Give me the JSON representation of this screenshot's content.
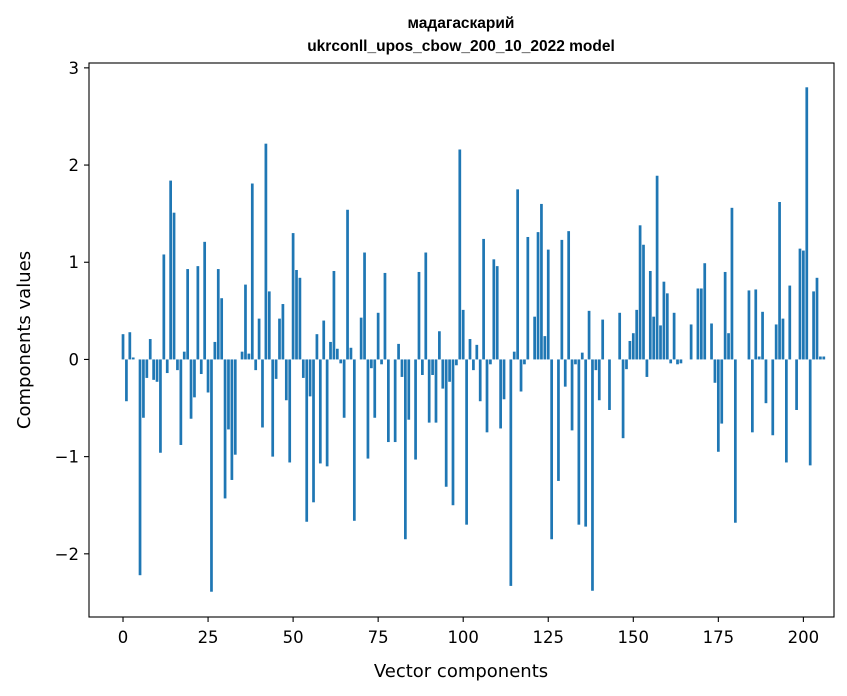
{
  "chart_data": {
    "type": "bar",
    "title": "мадагаскарий",
    "subtitle": "ukrconll_upos_cbow_200_10_2022 model",
    "xlabel": "Vector components",
    "ylabel": "Components values",
    "xlim": [
      -10,
      209
    ],
    "ylim": [
      -2.65,
      3.05
    ],
    "xticks": [
      0,
      25,
      50,
      75,
      100,
      125,
      150,
      175,
      200
    ],
    "yticks": [
      -2,
      -1,
      0,
      1,
      2,
      3
    ],
    "xtick_labels": [
      "0",
      "25",
      "50",
      "75",
      "100",
      "125",
      "150",
      "175",
      "200"
    ],
    "ytick_labels": [
      "−2",
      "−1",
      "0",
      "1",
      "2",
      "3"
    ],
    "grid": false,
    "bar_color": "#1f77b4",
    "values": [
      0.26,
      -0.43,
      0.28,
      0.02,
      0.0,
      -2.22,
      -0.6,
      -0.19,
      0.21,
      -0.21,
      -0.23,
      -0.96,
      1.08,
      -0.14,
      1.84,
      1.51,
      -0.11,
      -0.88,
      0.08,
      0.93,
      -0.61,
      -0.39,
      0.96,
      -0.15,
      1.21,
      -0.34,
      -2.39,
      0.18,
      0.93,
      0.63,
      -1.43,
      -0.72,
      -1.24,
      -0.98,
      0.0,
      0.08,
      0.77,
      0.06,
      1.81,
      -0.11,
      0.42,
      -0.7,
      2.22,
      0.7,
      -1.0,
      -0.2,
      0.42,
      0.57,
      -0.42,
      -1.06,
      1.3,
      0.92,
      0.84,
      -0.19,
      -1.67,
      -0.38,
      -1.47,
      0.26,
      -1.07,
      0.4,
      -1.1,
      0.18,
      0.91,
      0.11,
      -0.04,
      -0.6,
      1.54,
      0.12,
      -1.66,
      0.0,
      0.43,
      1.1,
      -1.02,
      -0.09,
      -0.6,
      0.48,
      -0.05,
      0.89,
      -0.85,
      0.0,
      -0.85,
      0.16,
      -0.18,
      -1.85,
      -0.62,
      0.0,
      -1.03,
      0.9,
      -0.16,
      1.1,
      -0.65,
      -0.16,
      -0.65,
      0.29,
      -0.3,
      -1.31,
      -0.23,
      -1.5,
      -0.06,
      2.16,
      0.51,
      -1.7,
      0.21,
      -0.11,
      0.15,
      -0.43,
      1.24,
      -0.75,
      -0.05,
      1.03,
      0.96,
      -0.71,
      -0.41,
      0.0,
      -2.33,
      0.08,
      1.75,
      -0.33,
      -0.05,
      1.26,
      0.0,
      0.44,
      1.31,
      1.6,
      0.24,
      1.13,
      -1.85,
      0.0,
      -1.25,
      1.23,
      -0.28,
      1.32,
      -0.73,
      -0.05,
      -1.7,
      0.07,
      -1.72,
      0.5,
      -2.38,
      -0.11,
      -0.42,
      0.41,
      0.0,
      -0.52,
      0.0,
      0.0,
      0.48,
      -0.81,
      -0.1,
      0.19,
      0.27,
      0.51,
      1.38,
      1.18,
      -0.18,
      0.91,
      0.44,
      1.89,
      0.35,
      0.8,
      0.68,
      -0.04,
      0.48,
      -0.05,
      -0.04,
      0.0,
      0.0,
      0.36,
      0.0,
      0.73,
      0.73,
      0.99,
      0.0,
      0.37,
      -0.24,
      -0.95,
      -0.66,
      0.9,
      0.27,
      1.56,
      -1.68,
      0.0,
      0.0,
      0.0,
      0.71,
      -0.75,
      0.72,
      0.03,
      0.49,
      -0.45,
      0.0,
      -0.78,
      0.36,
      1.62,
      0.42,
      -1.06,
      0.76,
      0.0,
      -0.52,
      1.14,
      1.12,
      2.8,
      -1.09,
      0.7,
      0.84,
      0.03,
      0.03
    ]
  }
}
